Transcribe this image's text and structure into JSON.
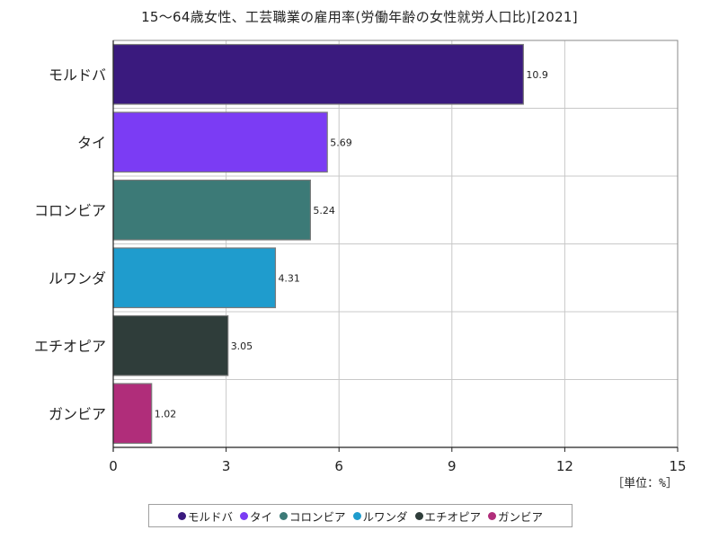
{
  "chart_data": {
    "type": "bar",
    "orientation": "horizontal",
    "title": "15～64歳女性、工芸職業の雇用率(労働年齢の女性就労人口比)[2021]",
    "unit_label": "［単位：%］",
    "categories": [
      "モルドバ",
      "タイ",
      "コロンビア",
      "ルワンダ",
      "エチオピア",
      "ガンビア"
    ],
    "values": [
      10.9,
      5.69,
      5.24,
      4.31,
      3.05,
      1.02
    ],
    "value_labels": [
      "10.9",
      "5.69",
      "5.24",
      "4.31",
      "3.05",
      "1.02"
    ],
    "colors": [
      "#3a1a7e",
      "#7b3cf4",
      "#3c7a77",
      "#1f9ccd",
      "#2f3d3a",
      "#b02d7a"
    ],
    "xlim": [
      0,
      15
    ],
    "xticks": [
      0,
      3,
      6,
      9,
      12,
      15
    ],
    "grid": true,
    "legend_position": "bottom"
  }
}
